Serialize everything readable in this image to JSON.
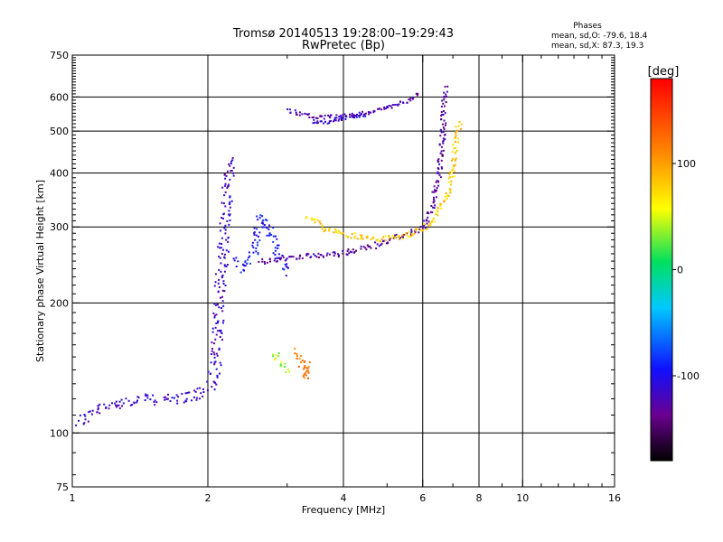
{
  "chart_data": {
    "type": "scatter",
    "title": "Tromsø 20140513 19:28:00–19:29:43",
    "subtitle": "RwPretec (Bp)",
    "xlabel": "Frequency [MHz]",
    "ylabel": "Stationary phase Virtual Height [km]",
    "x_scale": "log",
    "y_scale": "log",
    "xlim": [
      1,
      16
    ],
    "ylim": [
      75,
      750
    ],
    "x_ticks": [
      1,
      2,
      4,
      6,
      8,
      10,
      16
    ],
    "y_ticks": [
      75,
      100,
      200,
      300,
      400,
      500,
      600,
      750
    ],
    "x_grid": [
      2,
      4,
      6,
      8,
      10
    ],
    "y_grid": [
      100,
      200,
      300,
      400,
      500,
      600
    ],
    "grid": true,
    "colorbar": {
      "label": "[deg]",
      "range": [
        -180,
        180
      ],
      "ticks": [
        100,
        0,
        -100
      ],
      "colormap": "rainbow"
    },
    "stats": {
      "heading": "Phases",
      "line1": "mean, sd,O: -79.6, 18.4",
      "line2": "mean, sd,X:  87.3, 19.3"
    },
    "series": [
      {
        "type": "trace",
        "spread": 6,
        "phase": -115,
        "points": [
          [
            1.02,
            106
          ],
          [
            1.1,
            112
          ],
          [
            1.25,
            118
          ],
          [
            1.45,
            120
          ],
          [
            1.65,
            120
          ],
          [
            1.85,
            122
          ],
          [
            2.0,
            128
          ],
          [
            2.05,
            135
          ],
          [
            2.08,
            150
          ],
          [
            2.1,
            180
          ],
          [
            2.12,
            220
          ],
          [
            2.15,
            260
          ],
          [
            2.17,
            310
          ],
          [
            2.2,
            350
          ],
          [
            2.22,
            400
          ],
          [
            2.24,
            440
          ]
        ]
      },
      {
        "type": "trace",
        "spread": 5,
        "phase": -95,
        "points": [
          [
            2.3,
            250
          ],
          [
            2.4,
            240
          ],
          [
            2.55,
            270
          ],
          [
            2.6,
            320
          ],
          [
            2.7,
            300
          ],
          [
            2.8,
            280
          ],
          [
            2.9,
            250
          ],
          [
            3.0,
            235
          ]
        ]
      },
      {
        "type": "trace",
        "spread": 3,
        "phase": -130,
        "points": [
          [
            2.6,
            250
          ],
          [
            2.9,
            255
          ],
          [
            3.2,
            258
          ],
          [
            3.6,
            258
          ],
          [
            4.0,
            262
          ],
          [
            4.4,
            268
          ],
          [
            4.8,
            275
          ],
          [
            5.2,
            285
          ],
          [
            5.6,
            292
          ],
          [
            6.0,
            300
          ],
          [
            6.3,
            340
          ],
          [
            6.5,
            400
          ],
          [
            6.6,
            480
          ],
          [
            6.65,
            560
          ],
          [
            6.7,
            640
          ]
        ]
      },
      {
        "type": "trace",
        "spread": 3,
        "phase": 80,
        "points": [
          [
            3.3,
            320
          ],
          [
            3.6,
            300
          ],
          [
            4.0,
            290
          ],
          [
            4.4,
            285
          ],
          [
            4.8,
            282
          ],
          [
            5.2,
            285
          ],
          [
            5.6,
            290
          ],
          [
            6.0,
            298
          ],
          [
            6.4,
            320
          ],
          [
            6.8,
            360
          ],
          [
            7.0,
            420
          ],
          [
            7.1,
            480
          ],
          [
            7.2,
            530
          ]
        ]
      },
      {
        "type": "trace",
        "spread": 2,
        "phase": -125,
        "points": [
          [
            3.0,
            560
          ],
          [
            3.5,
            540
          ],
          [
            4.0,
            545
          ],
          [
            4.5,
            555
          ],
          [
            5.0,
            570
          ],
          [
            5.5,
            590
          ],
          [
            5.9,
            620
          ]
        ]
      },
      {
        "type": "trace",
        "spread": 2,
        "phase": -110,
        "points": [
          [
            3.4,
            530
          ],
          [
            3.6,
            525
          ],
          [
            4.0,
            540
          ],
          [
            4.5,
            550
          ]
        ]
      },
      {
        "type": "trace",
        "spread": 4,
        "phase": 120,
        "points": [
          [
            3.1,
            155
          ],
          [
            3.2,
            150
          ],
          [
            3.25,
            140
          ],
          [
            3.3,
            135
          ],
          [
            3.35,
            145
          ]
        ]
      },
      {
        "type": "trace",
        "spread": 4,
        "phase": 40,
        "points": [
          [
            2.8,
            155
          ],
          [
            2.9,
            145
          ],
          [
            3.0,
            140
          ]
        ]
      }
    ]
  }
}
